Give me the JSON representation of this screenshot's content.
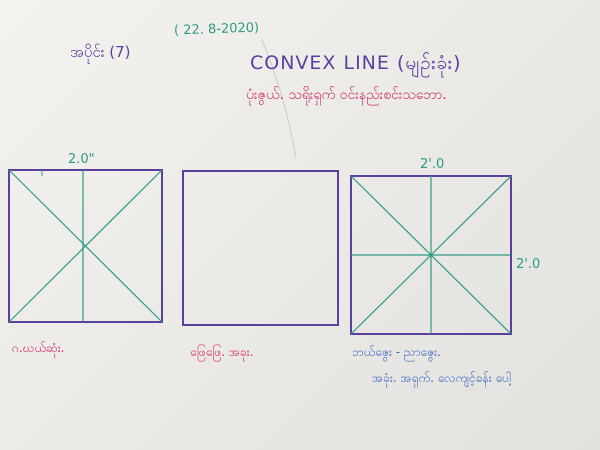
{
  "header": {
    "date": "( 22. 8-2020)",
    "lesson": "အပိုင်း (7)",
    "title": "CONVEX LINE (မျဉ်းခုံး)",
    "subtitle": "ပုံးဇွယ်. သရိုးရှက် ဝင်းနည်းစင်းသဘော."
  },
  "dimensions": {
    "fig1_top": "2.0\"",
    "fig3_top": "2'.0",
    "fig3_right": "2'.0"
  },
  "captions": {
    "fig1": "ဂ.ဃယ်ဆုံး.",
    "fig2": "ဖြေဖြေ. အခုး.",
    "fig3_line1": "ဘယ်ဇွေး - ညာဇွေး.",
    "fig3_line2": "အခုံး. အရှက်. လေကျင့်ခန်း ပေါ့"
  },
  "colors": {
    "frame": "#5b3f9e",
    "guide": "#2f9a84",
    "caption": "#d0306a",
    "note": "#3f6cc4"
  }
}
